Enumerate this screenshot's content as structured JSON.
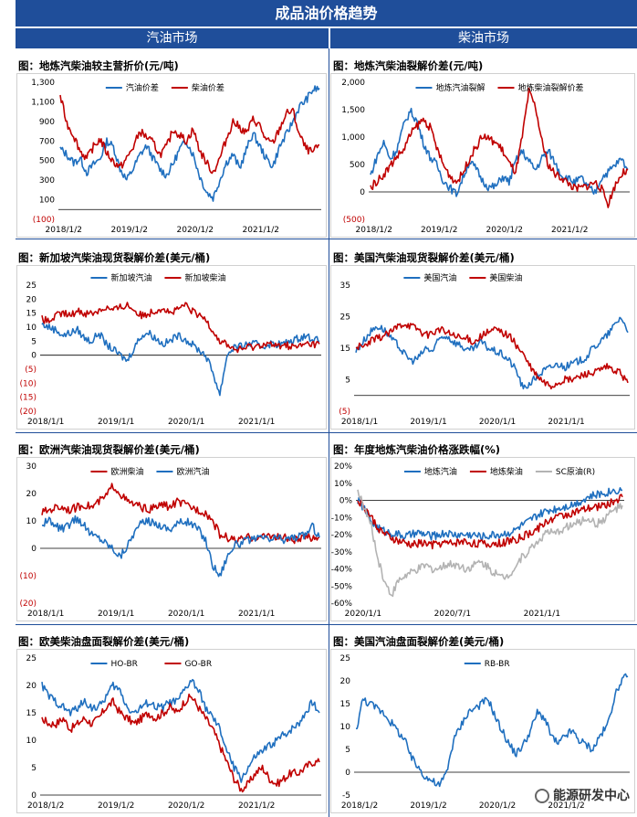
{
  "header": {
    "title": "成品油价格趋势",
    "left_section": "汽油市场",
    "right_section": "柴油市场"
  },
  "watermark": {
    "text": "能源研发中心"
  },
  "colors": {
    "blue": "#1f6fbf",
    "red": "#c00000",
    "grey": "#b3b3b3",
    "neg": "#c00000",
    "header": "#1f4e9a"
  },
  "chart_data": [
    {
      "id": "c1",
      "type": "line",
      "title": "图：地炼汽柴油较主营折价(元/吨)",
      "ylim": [
        -100,
        1300
      ],
      "yticks": [
        -100,
        100,
        300,
        500,
        700,
        900,
        1100,
        1300
      ],
      "ytick_labels": [
        "(100)",
        "100",
        "300",
        "500",
        "700",
        "900",
        "1,100",
        "1,300"
      ],
      "xticks": [
        "2018/1/2",
        "2019/1/2",
        "2020/1/2",
        "2021/1/2"
      ],
      "series": [
        {
          "name": "汽油价差",
          "color": "blue",
          "values": [
            620,
            560,
            480,
            520,
            380,
            460,
            520,
            700,
            640,
            420,
            300,
            420,
            560,
            650,
            520,
            410,
            350,
            470,
            620,
            700,
            560,
            340,
            180,
            120,
            300,
            480,
            560,
            420,
            610,
            780,
            650,
            520,
            440,
            640,
            760,
            900,
            1050,
            1120,
            1220,
            1240
          ]
        },
        {
          "name": "柴油价差",
          "color": "red",
          "values": [
            1160,
            880,
            760,
            600,
            520,
            640,
            720,
            580,
            490,
            430,
            520,
            640,
            800,
            740,
            680,
            560,
            640,
            820,
            760,
            700,
            820,
            600,
            480,
            380,
            520,
            720,
            900,
            840,
            780,
            920,
            860,
            700,
            680,
            820,
            980,
            1010,
            760,
            620,
            580,
            660
          ]
        }
      ]
    },
    {
      "id": "c2",
      "type": "line",
      "title": "图：地炼汽柴油裂解价差(元/吨)",
      "ylim": [
        -500,
        2000
      ],
      "yticks": [
        -500,
        0,
        500,
        1000,
        1500,
        2000
      ],
      "ytick_labels": [
        "(500)",
        "0",
        "500",
        "1,000",
        "1,500",
        "2,000"
      ],
      "xticks": [
        "2018/1/2",
        "2019/1/2",
        "2020/1/2",
        "2021/1/2"
      ],
      "series": [
        {
          "name": "地炼汽油裂解",
          "color": "blue",
          "values": [
            300,
            650,
            900,
            600,
            780,
            1200,
            1480,
            1300,
            900,
            640,
            500,
            220,
            80,
            -40,
            260,
            560,
            420,
            200,
            80,
            100,
            280,
            180,
            560,
            740,
            560,
            400,
            620,
            740,
            520,
            300,
            240,
            180,
            250,
            80,
            -20,
            260,
            360,
            480,
            600,
            420
          ]
        },
        {
          "name": "地炼柴油裂解价差",
          "color": "red",
          "values": [
            80,
            200,
            320,
            480,
            650,
            760,
            1040,
            1200,
            1320,
            1180,
            820,
            500,
            300,
            180,
            340,
            620,
            820,
            1020,
            960,
            900,
            760,
            520,
            360,
            1000,
            1820,
            1540,
            900,
            480,
            320,
            260,
            160,
            60,
            80,
            120,
            180,
            50,
            -220,
            100,
            320,
            400
          ]
        }
      ]
    },
    {
      "id": "c3",
      "type": "line",
      "title": "图：新加坡汽柴油现货裂解价差(美元/桶)",
      "ylim": [
        -20,
        25
      ],
      "yticks": [
        -20,
        -15,
        -10,
        -5,
        0,
        5,
        10,
        15,
        20,
        25
      ],
      "ytick_labels": [
        "(20)",
        "(15)",
        "(10)",
        "(5)",
        "0",
        "5",
        "10",
        "15",
        "20",
        "25"
      ],
      "xticks": [
        "2018/1/1",
        "2019/1/1",
        "2020/1/1",
        "2021/1/1"
      ],
      "series": [
        {
          "name": "新加坡汽油",
          "color": "blue",
          "values": [
            11,
            10,
            9,
            7,
            8,
            9,
            6,
            5,
            8,
            4,
            2,
            0,
            -2,
            3,
            7,
            8,
            6,
            4,
            5,
            7,
            6,
            4,
            2,
            0,
            -6,
            -14,
            0,
            3,
            3,
            4,
            4,
            3,
            4,
            4,
            4,
            5,
            6,
            7,
            6,
            5
          ]
        },
        {
          "name": "新加坡柴油",
          "color": "red",
          "values": [
            13,
            12,
            14,
            15,
            14,
            16,
            15,
            15,
            16,
            17,
            16,
            17,
            18,
            16,
            14,
            15,
            16,
            17,
            15,
            16,
            18,
            16,
            14,
            13,
            9,
            5,
            4,
            2,
            2,
            3,
            3,
            4,
            4,
            3,
            4,
            3,
            3,
            4,
            4,
            4
          ]
        }
      ]
    },
    {
      "id": "c4",
      "type": "line",
      "title": "图：美国汽柴油现货裂解价差(美元/桶)",
      "ylim": [
        -5,
        35
      ],
      "yticks": [
        -5,
        5,
        15,
        25,
        35
      ],
      "ytick_labels": [
        "(5)",
        "5",
        "15",
        "25",
        "35"
      ],
      "xticks": [
        "2018/1/1",
        "2019/1/1",
        "2020/1/1",
        "2021/1/1"
      ],
      "series": [
        {
          "name": "美国汽油",
          "color": "blue",
          "values": [
            14,
            17,
            20,
            22,
            21,
            18,
            16,
            13,
            11,
            12,
            15,
            14,
            18,
            19,
            17,
            16,
            14,
            15,
            17,
            15,
            14,
            13,
            11,
            8,
            2,
            4,
            6,
            8,
            9,
            10,
            9,
            10,
            11,
            12,
            15,
            17,
            19,
            22,
            25,
            20
          ]
        },
        {
          "name": "美国柴油",
          "color": "red",
          "values": [
            16,
            15,
            17,
            18,
            19,
            20,
            22,
            23,
            22,
            21,
            19,
            20,
            21,
            20,
            19,
            18,
            18,
            17,
            19,
            20,
            21,
            20,
            19,
            16,
            13,
            9,
            6,
            4,
            3,
            4,
            5,
            5,
            6,
            7,
            7,
            8,
            9,
            8,
            7,
            4
          ]
        }
      ]
    },
    {
      "id": "c5",
      "type": "line",
      "title": "图：欧洲汽柴油现货裂解价差(美元/桶)",
      "ylim": [
        -20,
        30
      ],
      "yticks": [
        -20,
        -10,
        0,
        10,
        20,
        30
      ],
      "ytick_labels": [
        "(20)",
        "(10)",
        "0",
        "10",
        "20",
        "30"
      ],
      "xticks": [
        "2018/1/1",
        "2019/1/1",
        "2020/1/1",
        "2021/1/1"
      ],
      "series": [
        {
          "name": "欧洲柴油",
          "color": "red",
          "values": [
            13,
            14,
            15,
            15,
            14,
            15,
            16,
            15,
            17,
            19,
            23,
            20,
            17,
            16,
            15,
            14,
            15,
            16,
            15,
            17,
            16,
            15,
            14,
            13,
            10,
            5,
            4,
            3,
            3,
            4,
            4,
            4,
            5,
            4,
            4,
            3,
            3,
            4,
            4,
            4
          ]
        },
        {
          "name": "欧洲汽油",
          "color": "blue",
          "values": [
            9,
            10,
            8,
            7,
            9,
            11,
            8,
            5,
            4,
            2,
            0,
            -3,
            1,
            6,
            9,
            10,
            9,
            8,
            7,
            9,
            10,
            9,
            7,
            3,
            -6,
            -10,
            -3,
            1,
            2,
            3,
            3,
            4,
            3,
            4,
            3,
            4,
            4,
            5,
            8,
            4
          ]
        }
      ]
    },
    {
      "id": "c6",
      "type": "line",
      "title": "图：年度地炼汽柴油价格涨跌幅(%)",
      "ylim": [
        -60,
        20
      ],
      "yticks": [
        -60,
        -50,
        -40,
        -30,
        -20,
        -10,
        0,
        10,
        20
      ],
      "ytick_labels": [
        "-60%",
        "-50%",
        "-40%",
        "-30%",
        "-20%",
        "-10%",
        "0%",
        "10%",
        "20%"
      ],
      "xticks": [
        "2020/1/1",
        "2020/7/1",
        "2021/1/1"
      ],
      "series": [
        {
          "name": "地炼汽油",
          "color": "blue",
          "values": [
            0,
            -5,
            -12,
            -16,
            -18,
            -19,
            -20,
            -21,
            -20,
            -19,
            -20,
            -21,
            -20,
            -19,
            -20,
            -20,
            -20,
            -20,
            -21,
            -21,
            -20,
            -20,
            -19,
            -18,
            -15,
            -13,
            -10,
            -8,
            -6,
            -5,
            -4,
            -3,
            -2,
            0,
            2,
            3,
            4,
            5,
            6,
            6
          ]
        },
        {
          "name": "地炼柴油",
          "color": "red",
          "values": [
            0,
            -4,
            -10,
            -16,
            -20,
            -22,
            -24,
            -25,
            -26,
            -25,
            -25,
            -26,
            -25,
            -25,
            -25,
            -24,
            -24,
            -25,
            -25,
            -26,
            -25,
            -25,
            -24,
            -23,
            -22,
            -20,
            -18,
            -15,
            -12,
            -10,
            -9,
            -8,
            -7,
            -6,
            -5,
            -4,
            -3,
            -2,
            0,
            2
          ]
        },
        {
          "name": "SC原油(R)",
          "color": "grey",
          "values": [
            5,
            -5,
            -15,
            -35,
            -48,
            -55,
            -47,
            -44,
            -42,
            -40,
            -38,
            -40,
            -40,
            -38,
            -37,
            -38,
            -40,
            -38,
            -36,
            -38,
            -42,
            -45,
            -44,
            -40,
            -34,
            -30,
            -26,
            -22,
            -18,
            -20,
            -17,
            -15,
            -14,
            -12,
            -10,
            -14,
            -12,
            -8,
            -5,
            -3
          ]
        }
      ]
    },
    {
      "id": "c7",
      "type": "line",
      "title": "图：欧美柴油盘面裂解价差(美元/桶)",
      "ylim": [
        0,
        25
      ],
      "yticks": [
        0,
        5,
        10,
        15,
        20,
        25
      ],
      "ytick_labels": [
        "0",
        "5",
        "10",
        "15",
        "20",
        "25"
      ],
      "xticks": [
        "2018/1/2",
        "2019/1/2",
        "2020/1/2",
        "2021/1/2"
      ],
      "series": [
        {
          "name": "HO-BR",
          "color": "blue",
          "values": [
            20,
            18,
            17,
            16,
            15,
            16,
            17,
            16,
            16,
            18,
            20,
            19,
            16,
            15,
            16,
            17,
            16,
            16,
            17,
            17,
            19,
            21,
            19,
            16,
            14,
            12,
            8,
            5,
            3,
            5,
            7,
            8,
            9,
            10,
            11,
            12,
            13,
            15,
            17,
            15
          ]
        },
        {
          "name": "GO-BR",
          "color": "red",
          "values": [
            14,
            13,
            13,
            14,
            12,
            13,
            14,
            13,
            14,
            16,
            17,
            15,
            14,
            13,
            14,
            15,
            14,
            15,
            16,
            15,
            17,
            18,
            16,
            14,
            12,
            9,
            6,
            3,
            1,
            2,
            4,
            5,
            3,
            2,
            3,
            4,
            4,
            5,
            6,
            6
          ]
        }
      ]
    },
    {
      "id": "c8",
      "type": "line",
      "title": "图：美国汽油盘面裂解价差(美元/桶)",
      "ylim": [
        -5,
        25
      ],
      "yticks": [
        -5,
        0,
        5,
        10,
        15,
        20,
        25
      ],
      "ytick_labels": [
        "-5",
        "0",
        "5",
        "10",
        "15",
        "20",
        "25"
      ],
      "xticks": [
        "2018/1/2",
        "2019/1/2",
        "2020/1/2",
        "2021/1/2"
      ],
      "series": [
        {
          "name": "RB-BR",
          "color": "blue",
          "values": [
            9,
            16,
            15,
            14,
            13,
            11,
            9,
            7,
            3,
            1,
            -1,
            -2,
            -3,
            0,
            7,
            10,
            13,
            14,
            15,
            16,
            12,
            9,
            6,
            4,
            6,
            9,
            13,
            12,
            8,
            6,
            8,
            9,
            7,
            6,
            5,
            8,
            10,
            16,
            20,
            21
          ]
        }
      ]
    }
  ]
}
